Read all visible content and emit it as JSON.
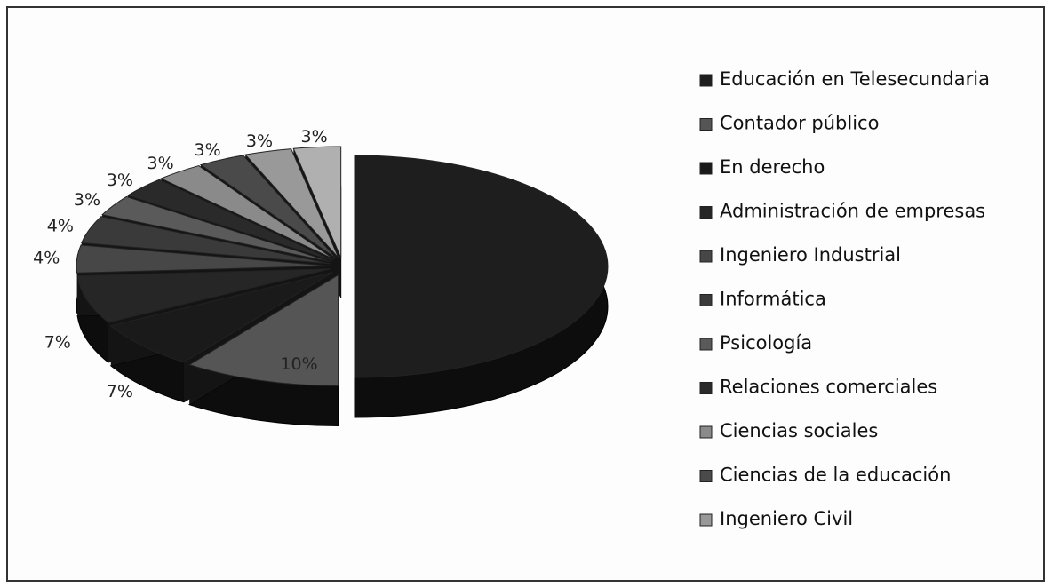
{
  "chart_data": {
    "type": "pie",
    "categories": [
      "Educación en Telesecundaria",
      "Contador público",
      "En derecho",
      "Administración de empresas",
      "Ingeniero Industrial",
      "Informática",
      "Psicología",
      "Relaciones comerciales",
      "Ciencias sociales",
      "Ciencias de la educación",
      "Ingeniero Civil",
      null
    ],
    "values": [
      50,
      10,
      7,
      7,
      4,
      4,
      3,
      3,
      3,
      3,
      3,
      3
    ],
    "value_labels": [
      null,
      "10%",
      "7%",
      "7%",
      "4%",
      "4%",
      "3%",
      "3%",
      "3%",
      "3%",
      "3%",
      "3%"
    ],
    "colors": [
      "#1e1e1e",
      "#555555",
      "#1a1a1a",
      "#262626",
      "#474747",
      "#3a3a3a",
      "#5a5a5a",
      "#2a2a2a",
      "#8a8a8a",
      "#4a4a4a",
      "#999999",
      "#b0b0b0"
    ]
  }
}
